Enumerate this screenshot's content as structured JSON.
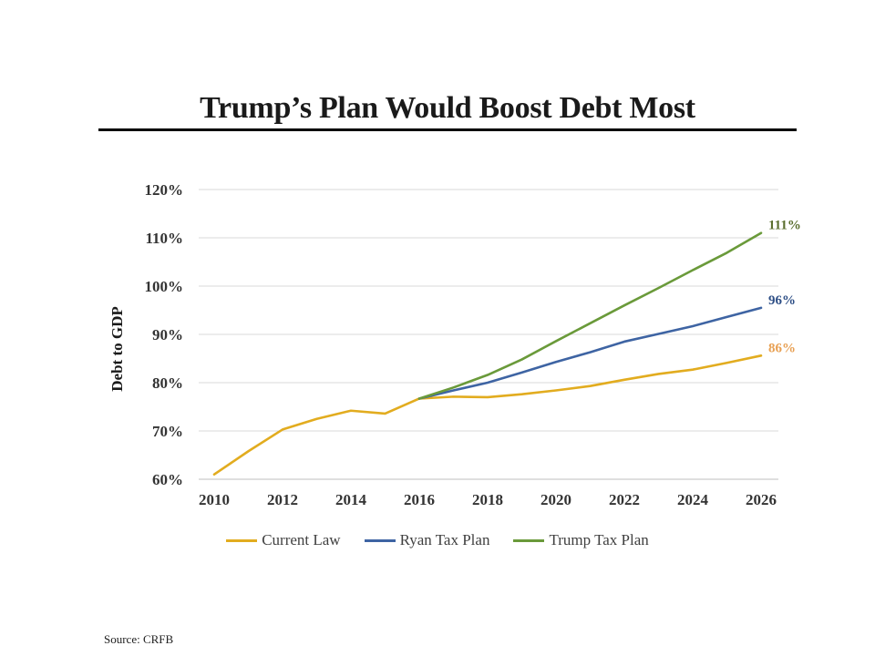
{
  "slide": {
    "title": "Trump’s Plan Would Boost Debt Most",
    "source": "Source: CRFB"
  },
  "chart_data": {
    "type": "line",
    "ylabel": "Debt to GDP",
    "xlabel": "",
    "ylim": [
      60,
      120
    ],
    "xlim": [
      2010,
      2026
    ],
    "y_ticks": [
      "60%",
      "70%",
      "80%",
      "90%",
      "100%",
      "110%",
      "120%"
    ],
    "x_ticks": [
      "2010",
      "2012",
      "2014",
      "2016",
      "2018",
      "2020",
      "2022",
      "2024",
      "2026"
    ],
    "grid": "horizontal",
    "legend_position": "bottom",
    "series": [
      {
        "name": "Current Law",
        "color": "#E2AC1F",
        "x": [
          2010,
          2011,
          2012,
          2013,
          2014,
          2015,
          2016,
          2017,
          2018,
          2019,
          2020,
          2021,
          2022,
          2023,
          2024,
          2025,
          2026
        ],
        "y": [
          61,
          65.8,
          70.3,
          72.5,
          74.2,
          73.6,
          76.7,
          77.1,
          77.0,
          77.6,
          78.4,
          79.3,
          80.6,
          81.8,
          82.7,
          84.1,
          85.6
        ],
        "end_label": "86%",
        "end_label_color": "#E8A053"
      },
      {
        "name": "Ryan Tax Plan",
        "color": "#3E64A3",
        "x": [
          2016,
          2017,
          2018,
          2019,
          2020,
          2021,
          2022,
          2023,
          2024,
          2025,
          2026
        ],
        "y": [
          76.7,
          78.4,
          80.0,
          82.1,
          84.3,
          86.3,
          88.5,
          90.1,
          91.7,
          93.6,
          95.5
        ],
        "end_label": "96%",
        "end_label_color": "#2E4F86"
      },
      {
        "name": "Trump Tax Plan",
        "color": "#6A9A3A",
        "x": [
          2016,
          2017,
          2018,
          2019,
          2020,
          2021,
          2022,
          2023,
          2024,
          2025,
          2026
        ],
        "y": [
          76.7,
          79.0,
          81.6,
          84.8,
          88.6,
          92.3,
          96.0,
          99.6,
          103.3,
          106.9,
          111.0
        ],
        "end_label": "111%",
        "end_label_color": "#5A6E2E"
      }
    ]
  }
}
